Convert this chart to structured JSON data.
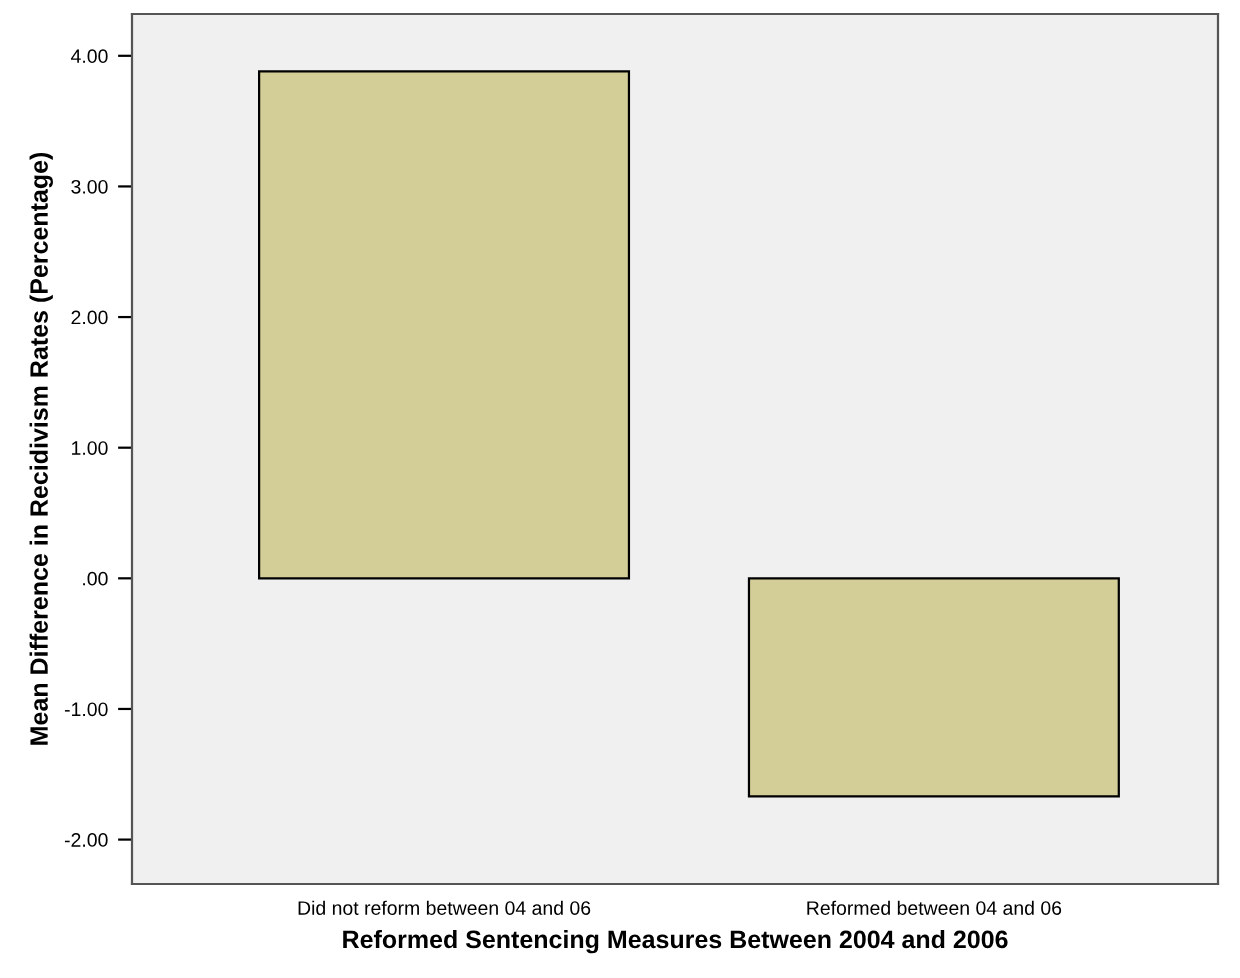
{
  "chart_data": {
    "type": "bar",
    "xlabel": "Reformed Sentencing Measures Between 2004 and 2006",
    "ylabel": "Mean Difference in Recidivism Rates (Percentage)",
    "categories": [
      "Did not reform between 04 and 06",
      "Reformed between 04 and 06"
    ],
    "values": [
      3.88,
      -1.67
    ],
    "color": "#d3ce97",
    "ylim": [
      -2.34,
      4.32
    ],
    "yticks": [
      {
        "value": -2,
        "label": "-2.00"
      },
      {
        "value": -1,
        "label": "-1.00"
      },
      {
        "value": 0,
        "label": ".00"
      },
      {
        "value": 1,
        "label": "1.00"
      },
      {
        "value": 2,
        "label": "2.00"
      },
      {
        "value": 3,
        "label": "3.00"
      },
      {
        "value": 4,
        "label": "4.00"
      }
    ],
    "grid": false
  }
}
